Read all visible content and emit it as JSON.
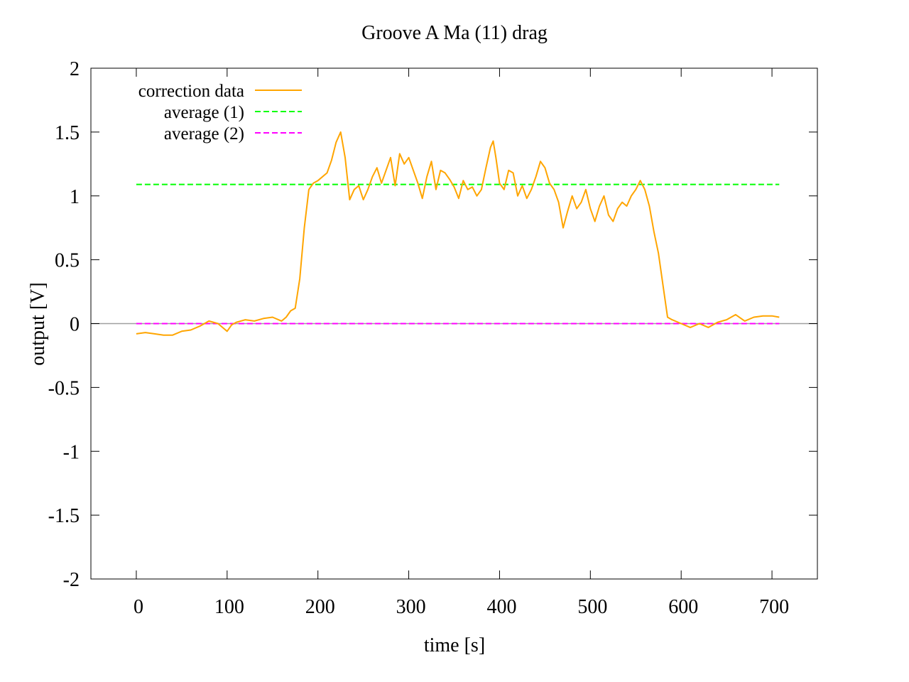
{
  "chart_data": {
    "type": "line",
    "title": "Groove A  Ma (11) drag",
    "xlabel": "time [s]",
    "ylabel": "output [V]",
    "xlim": [
      -50,
      750
    ],
    "ylim": [
      -2,
      2
    ],
    "xticks": [
      0,
      100,
      200,
      300,
      400,
      500,
      600,
      700
    ],
    "yticks": [
      -2,
      -1.5,
      -1,
      -0.5,
      0,
      0.5,
      1,
      1.5,
      2
    ],
    "xtick_labels": [
      "0",
      "100",
      "200",
      "300",
      "400",
      "500",
      "600",
      "700"
    ],
    "ytick_labels": [
      "-2",
      "-1.5",
      "-1",
      "-0.5",
      "0",
      "0.5",
      "1",
      "1.5",
      "2"
    ],
    "grid": false,
    "zero_line": true,
    "legend_position": "top-left",
    "series": [
      {
        "name": "correction data",
        "style": "solid",
        "color": "#ffa500",
        "x": [
          0,
          10,
          20,
          30,
          40,
          50,
          60,
          70,
          80,
          90,
          100,
          105,
          110,
          120,
          130,
          140,
          150,
          160,
          165,
          170,
          175,
          180,
          185,
          190,
          195,
          200,
          210,
          215,
          220,
          225,
          230,
          235,
          240,
          245,
          250,
          255,
          260,
          265,
          270,
          275,
          280,
          285,
          290,
          295,
          300,
          305,
          310,
          315,
          320,
          325,
          330,
          335,
          340,
          345,
          350,
          355,
          360,
          365,
          370,
          375,
          380,
          385,
          390,
          393,
          396,
          400,
          405,
          410,
          415,
          420,
          425,
          430,
          435,
          440,
          445,
          450,
          455,
          460,
          465,
          470,
          475,
          480,
          485,
          490,
          495,
          500,
          505,
          510,
          515,
          520,
          525,
          530,
          535,
          540,
          545,
          550,
          555,
          560,
          565,
          570,
          575,
          580,
          585,
          590,
          600,
          610,
          620,
          630,
          640,
          650,
          660,
          670,
          680,
          690,
          700,
          708
        ],
        "y": [
          -0.08,
          -0.07,
          -0.08,
          -0.09,
          -0.09,
          -0.06,
          -0.05,
          -0.02,
          0.02,
          0.0,
          -0.06,
          -0.01,
          0.01,
          0.03,
          0.02,
          0.04,
          0.05,
          0.02,
          0.05,
          0.1,
          0.12,
          0.35,
          0.75,
          1.05,
          1.1,
          1.12,
          1.18,
          1.28,
          1.42,
          1.5,
          1.3,
          0.97,
          1.05,
          1.08,
          0.97,
          1.05,
          1.15,
          1.22,
          1.1,
          1.2,
          1.3,
          1.08,
          1.33,
          1.25,
          1.3,
          1.2,
          1.1,
          0.98,
          1.15,
          1.27,
          1.05,
          1.2,
          1.18,
          1.13,
          1.07,
          0.98,
          1.12,
          1.05,
          1.07,
          1.0,
          1.05,
          1.22,
          1.38,
          1.43,
          1.3,
          1.1,
          1.05,
          1.2,
          1.18,
          1.0,
          1.08,
          0.98,
          1.05,
          1.15,
          1.27,
          1.22,
          1.1,
          1.05,
          0.95,
          0.75,
          0.88,
          1.0,
          0.9,
          0.95,
          1.05,
          0.9,
          0.8,
          0.92,
          1.0,
          0.85,
          0.8,
          0.9,
          0.95,
          0.92,
          1.0,
          1.05,
          1.12,
          1.05,
          0.92,
          0.72,
          0.55,
          0.3,
          0.05,
          0.03,
          0.0,
          -0.03,
          0.0,
          -0.03,
          0.01,
          0.03,
          0.07,
          0.02,
          0.05,
          0.06,
          0.06,
          0.05
        ]
      },
      {
        "name": "average (1)",
        "style": "dashed",
        "color": "#00ff00",
        "x": [
          0,
          708
        ],
        "y": [
          1.09,
          1.09
        ]
      },
      {
        "name": "average (2)",
        "style": "dashed",
        "color": "#ff00ff",
        "x": [
          0,
          708
        ],
        "y": [
          0,
          0
        ]
      }
    ]
  }
}
